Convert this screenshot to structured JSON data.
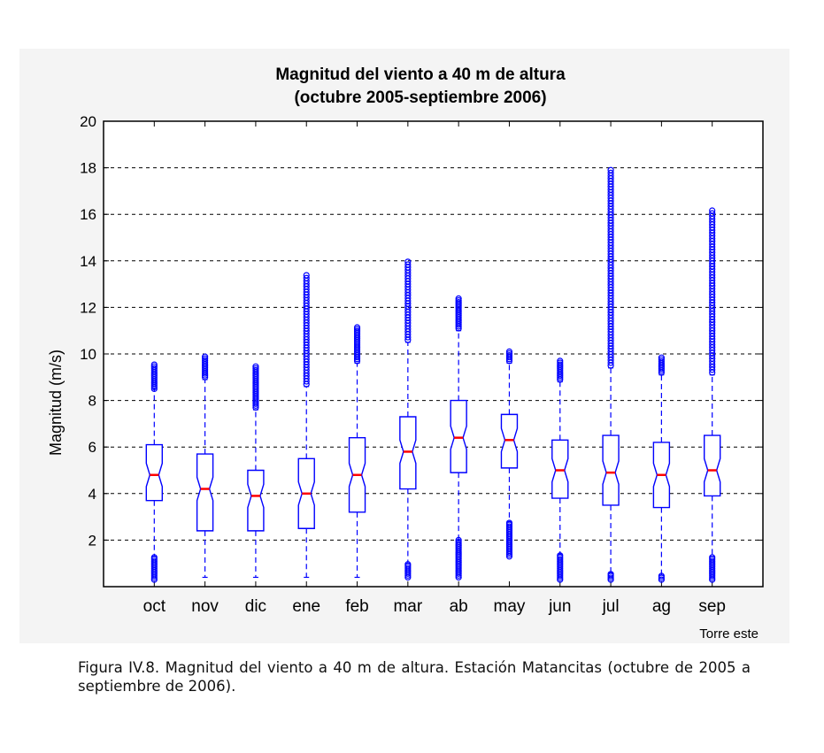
{
  "caption": "Figura IV.8. Magnitud del viento a 40 m de altura. Estación Matancitas (octubre de 2005 a septiembre de 2006).",
  "chart_data": {
    "type": "boxplot",
    "title": "Magnitud del viento a 40 m de altura",
    "subtitle": "(octubre 2005-septiembre 2006)",
    "xlabel": "",
    "ylabel": "Magnitud (m/s)",
    "annotation": "Torre este",
    "ylim": [
      0,
      20
    ],
    "yticks": [
      2,
      4,
      6,
      8,
      10,
      12,
      14,
      16,
      18,
      20
    ],
    "grid": "horizontal dashed",
    "box_color": "#0000ff",
    "median_color": "#ff0000",
    "categories": [
      "oct",
      "nov",
      "dic",
      "ene",
      "feb",
      "mar",
      "ab",
      "may",
      "jun",
      "jul",
      "ag",
      "sep"
    ],
    "boxes": [
      {
        "q1": 3.7,
        "median": 4.8,
        "q3": 6.1,
        "whisker_low": 1.3,
        "whisker_high": 8.5,
        "outliers_low": [
          0.3,
          1.3
        ],
        "outliers_high": [
          8.5,
          9.6
        ]
      },
      {
        "q1": 2.4,
        "median": 4.2,
        "q3": 5.7,
        "whisker_low": 0.4,
        "whisker_high": 8.9,
        "outliers_low": [],
        "outliers_high": [
          9.0,
          9.9
        ]
      },
      {
        "q1": 2.4,
        "median": 3.9,
        "q3": 5.0,
        "whisker_low": 0.4,
        "whisker_high": 7.6,
        "outliers_low": [],
        "outliers_high": [
          7.7,
          9.5
        ]
      },
      {
        "q1": 2.5,
        "median": 4.0,
        "q3": 5.5,
        "whisker_low": 0.4,
        "whisker_high": 8.6,
        "outliers_low": [],
        "outliers_high": [
          8.7,
          13.4
        ]
      },
      {
        "q1": 3.2,
        "median": 4.8,
        "q3": 6.4,
        "whisker_low": 0.4,
        "whisker_high": 9.6,
        "outliers_low": [],
        "outliers_high": [
          9.7,
          11.2
        ]
      },
      {
        "q1": 4.2,
        "median": 5.8,
        "q3": 7.3,
        "whisker_low": 1.0,
        "whisker_high": 10.5,
        "outliers_low": [
          0.4,
          1.0
        ],
        "outliers_high": [
          10.6,
          14.0
        ]
      },
      {
        "q1": 4.9,
        "median": 6.4,
        "q3": 8.0,
        "whisker_low": 2.0,
        "whisker_high": 11.0,
        "outliers_low": [
          0.4,
          2.0
        ],
        "outliers_high": [
          11.1,
          12.4
        ]
      },
      {
        "q1": 5.1,
        "median": 6.3,
        "q3": 7.4,
        "whisker_low": 2.8,
        "whisker_high": 9.6,
        "outliers_low": [
          1.3,
          2.8
        ],
        "outliers_high": [
          9.7,
          10.1
        ]
      },
      {
        "q1": 3.8,
        "median": 5.0,
        "q3": 6.3,
        "whisker_low": 1.4,
        "whisker_high": 8.8,
        "outliers_low": [
          0.3,
          1.4
        ],
        "outliers_high": [
          8.9,
          9.7
        ]
      },
      {
        "q1": 3.5,
        "median": 4.9,
        "q3": 6.5,
        "whisker_low": 0.6,
        "whisker_high": 9.4,
        "outliers_low": [
          0.3,
          0.6
        ],
        "outliers_high": [
          9.5,
          17.9
        ]
      },
      {
        "q1": 3.4,
        "median": 4.8,
        "q3": 6.2,
        "whisker_low": 0.5,
        "whisker_high": 9.1,
        "outliers_low": [
          0.3,
          0.5
        ],
        "outliers_high": [
          9.2,
          9.9
        ]
      },
      {
        "q1": 3.9,
        "median": 5.0,
        "q3": 6.5,
        "whisker_low": 1.3,
        "whisker_high": 9.1,
        "outliers_low": [
          0.3,
          1.3
        ],
        "outliers_high": [
          9.2,
          16.2
        ]
      }
    ]
  }
}
